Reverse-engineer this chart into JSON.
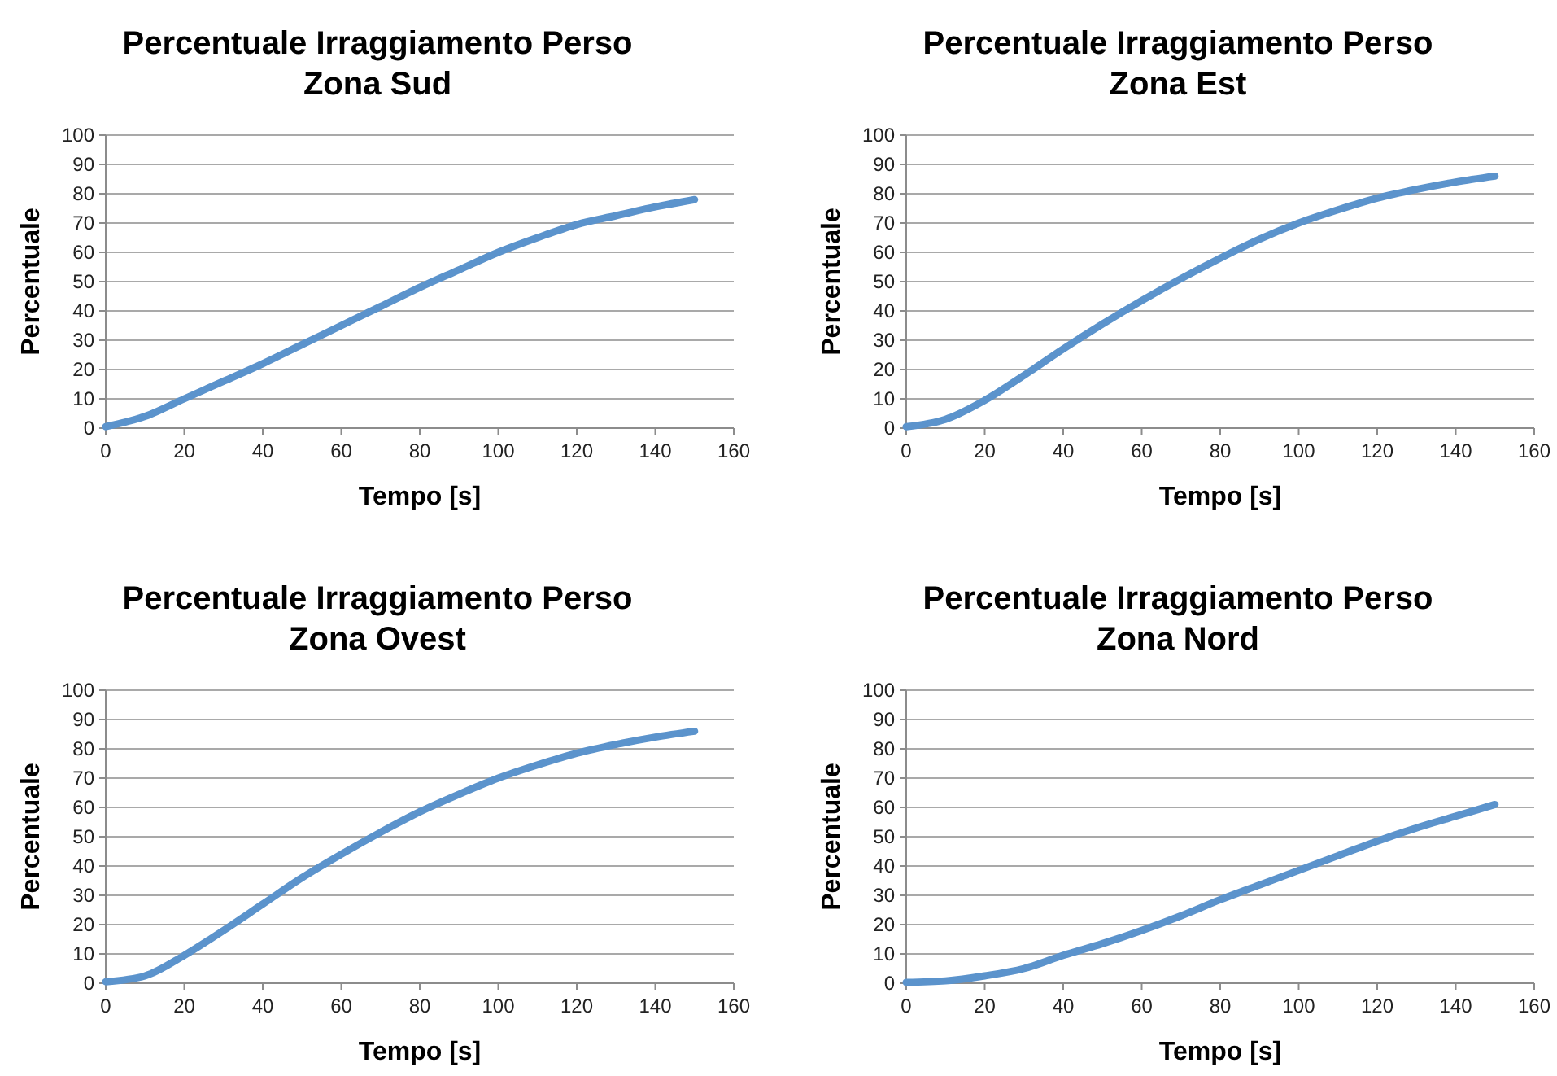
{
  "chart_data": [
    {
      "type": "line",
      "title": "Percentuale Irraggiamento Perso",
      "subtitle": "Zona Sud",
      "xlabel": "Tempo [s]",
      "ylabel": "Percentuale",
      "x": [
        0,
        10,
        20,
        30,
        40,
        50,
        60,
        70,
        80,
        90,
        100,
        110,
        120,
        130,
        140,
        150
      ],
      "series": [
        {
          "color": "#5b93cc",
          "values": [
            0.5,
            4,
            10,
            16,
            22,
            28.5,
            35,
            41.5,
            48,
            54,
            60,
            65,
            69.5,
            72.5,
            75.5,
            78
          ]
        }
      ],
      "xlim": [
        0,
        160
      ],
      "xticks": [
        0,
        20,
        40,
        60,
        80,
        100,
        120,
        140,
        160
      ],
      "ylim": [
        0,
        100
      ],
      "yticks": [
        0,
        10,
        20,
        30,
        40,
        50,
        60,
        70,
        80,
        90,
        100
      ],
      "grid": "y",
      "marker": "none",
      "line_style": "solid"
    },
    {
      "type": "line",
      "title": "Percentuale Irraggiamento Perso",
      "subtitle": "Zona Est",
      "xlabel": "Tempo [s]",
      "ylabel": "Percentuale",
      "x": [
        0,
        10,
        20,
        30,
        40,
        50,
        60,
        70,
        80,
        90,
        100,
        110,
        120,
        130,
        140,
        150
      ],
      "series": [
        {
          "color": "#5b93cc",
          "values": [
            0.5,
            3,
            9.5,
            18,
            27,
            35.5,
            43.5,
            51,
            58,
            64.5,
            70,
            74.5,
            78.5,
            81.5,
            84,
            86
          ]
        }
      ],
      "xlim": [
        0,
        160
      ],
      "xticks": [
        0,
        20,
        40,
        60,
        80,
        100,
        120,
        140,
        160
      ],
      "ylim": [
        0,
        100
      ],
      "yticks": [
        0,
        10,
        20,
        30,
        40,
        50,
        60,
        70,
        80,
        90,
        100
      ],
      "grid": "y",
      "marker": "none",
      "line_style": "solid"
    },
    {
      "type": "line",
      "title": "Percentuale Irraggiamento Perso",
      "subtitle": "Zona Ovest",
      "xlabel": "Tempo [s]",
      "ylabel": "Percentuale",
      "x": [
        0,
        10,
        20,
        30,
        40,
        50,
        60,
        70,
        80,
        90,
        100,
        110,
        120,
        130,
        140,
        150
      ],
      "series": [
        {
          "color": "#5b93cc",
          "values": [
            0.5,
            2.5,
            9.5,
            18,
            27,
            36,
            44,
            51.5,
            58.5,
            64.5,
            70,
            74.5,
            78.5,
            81.5,
            84,
            86
          ]
        }
      ],
      "xlim": [
        0,
        160
      ],
      "xticks": [
        0,
        20,
        40,
        60,
        80,
        100,
        120,
        140,
        160
      ],
      "ylim": [
        0,
        100
      ],
      "yticks": [
        0,
        10,
        20,
        30,
        40,
        50,
        60,
        70,
        80,
        90,
        100
      ],
      "grid": "y",
      "marker": "none",
      "line_style": "solid"
    },
    {
      "type": "line",
      "title": "Percentuale Irraggiamento Perso",
      "subtitle": "Zona Nord",
      "xlabel": "Tempo [s]",
      "ylabel": "Percentuale",
      "x": [
        0,
        10,
        20,
        30,
        40,
        50,
        60,
        70,
        80,
        90,
        100,
        110,
        120,
        130,
        140,
        150
      ],
      "series": [
        {
          "color": "#5b93cc",
          "values": [
            0.3,
            0.8,
            2.5,
            5,
            9.5,
            13.5,
            18,
            23,
            28.5,
            33.5,
            38.5,
            43.5,
            48.5,
            53,
            57,
            61
          ]
        }
      ],
      "xlim": [
        0,
        160
      ],
      "xticks": [
        0,
        20,
        40,
        60,
        80,
        100,
        120,
        140,
        160
      ],
      "ylim": [
        0,
        100
      ],
      "yticks": [
        0,
        10,
        20,
        30,
        40,
        50,
        60,
        70,
        80,
        90,
        100
      ],
      "grid": "y",
      "marker": "none",
      "line_style": "solid"
    }
  ]
}
